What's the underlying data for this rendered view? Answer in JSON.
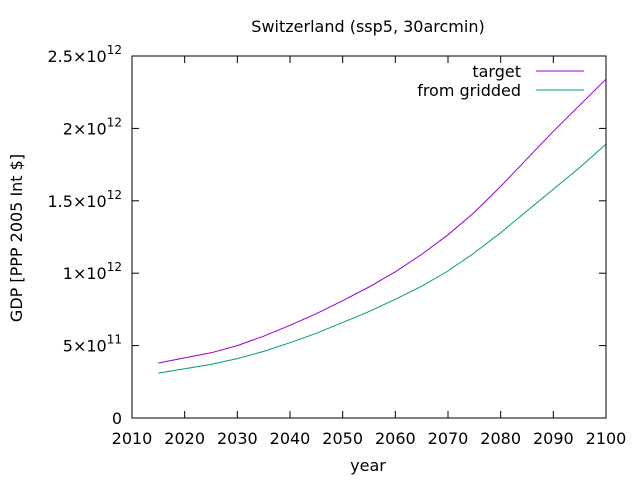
{
  "chart_data": {
    "type": "line",
    "title": "Switzerland (ssp5, 30arcmin)",
    "xlabel": "year",
    "ylabel": "GDP [PPP 2005 Int $]",
    "xlim": [
      2010,
      2100
    ],
    "ylim": [
      0,
      2500000000000
    ],
    "x_ticks": [
      "2010",
      "2020",
      "2030",
      "2040",
      "2050",
      "2060",
      "2070",
      "2080",
      "2090",
      "2100"
    ],
    "y_ticks": [
      {
        "value": 0,
        "mantissa": "0",
        "exponent": ""
      },
      {
        "value": 500000000000,
        "mantissa": "5×10",
        "exponent": "11"
      },
      {
        "value": 1000000000000,
        "mantissa": "1×10",
        "exponent": "12"
      },
      {
        "value": 1500000000000,
        "mantissa": "1.5×10",
        "exponent": "12"
      },
      {
        "value": 2000000000000,
        "mantissa": "2×10",
        "exponent": "12"
      },
      {
        "value": 2500000000000,
        "mantissa": "2.5×10",
        "exponent": "12"
      }
    ],
    "grid": false,
    "legend_position": "top-right",
    "x": [
      2015,
      2020,
      2025,
      2030,
      2035,
      2040,
      2045,
      2050,
      2055,
      2060,
      2065,
      2070,
      2075,
      2080,
      2085,
      2090,
      2095,
      2100
    ],
    "series": [
      {
        "name": "target",
        "color": "#9400d3",
        "values": [
          380000000000,
          415000000000,
          450000000000,
          500000000000,
          565000000000,
          640000000000,
          720000000000,
          810000000000,
          905000000000,
          1010000000000,
          1130000000000,
          1265000000000,
          1420000000000,
          1600000000000,
          1790000000000,
          1980000000000,
          2160000000000,
          2340000000000
        ]
      },
      {
        "name": "from gridded",
        "color": "#009e73",
        "values": [
          310000000000,
          340000000000,
          370000000000,
          410000000000,
          460000000000,
          520000000000,
          585000000000,
          660000000000,
          735000000000,
          820000000000,
          910000000000,
          1015000000000,
          1140000000000,
          1280000000000,
          1430000000000,
          1580000000000,
          1730000000000,
          1890000000000
        ]
      }
    ]
  }
}
